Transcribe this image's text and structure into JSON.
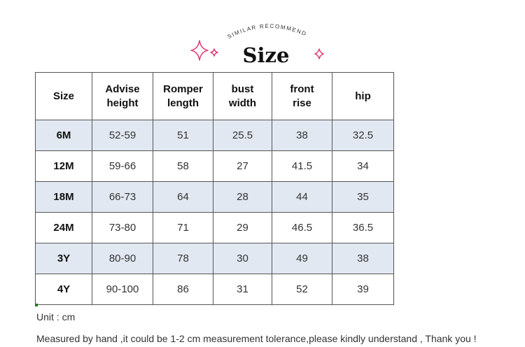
{
  "header": {
    "arc_text": "SIMILAR RECOMMEND",
    "title": "Size",
    "sparkle_color": "#e0447a"
  },
  "table": {
    "columns": [
      [
        "Size"
      ],
      [
        "Advise",
        "height"
      ],
      [
        "Romper",
        "length"
      ],
      [
        "bust",
        "width"
      ],
      [
        "front",
        "rise"
      ],
      [
        "hip"
      ]
    ],
    "rows": [
      {
        "size": "6M",
        "height": "52-59",
        "romper": "51",
        "bust": "25.5",
        "rise": "38",
        "hip": "32.5"
      },
      {
        "size": "12M",
        "height": "59-66",
        "romper": "58",
        "bust": "27",
        "rise": "41.5",
        "hip": "34"
      },
      {
        "size": "18M",
        "height": "66-73",
        "romper": "64",
        "bust": "28",
        "rise": "44",
        "hip": "35"
      },
      {
        "size": "24M",
        "height": "73-80",
        "romper": "71",
        "bust": "29",
        "rise": "46.5",
        "hip": "36.5"
      },
      {
        "size": "3Y",
        "height": "80-90",
        "romper": "78",
        "bust": "30",
        "rise": "49",
        "hip": "38"
      },
      {
        "size": "4Y",
        "height": "90-100",
        "romper": "86",
        "bust": "31",
        "rise": "52",
        "hip": "39"
      }
    ],
    "shaded_color": "#e2e8f1"
  },
  "footer": {
    "unit": "Unit : cm",
    "note": "Measured by hand ,it could be 1-2 cm measurement tolerance,please kindly understand , Thank you !"
  }
}
